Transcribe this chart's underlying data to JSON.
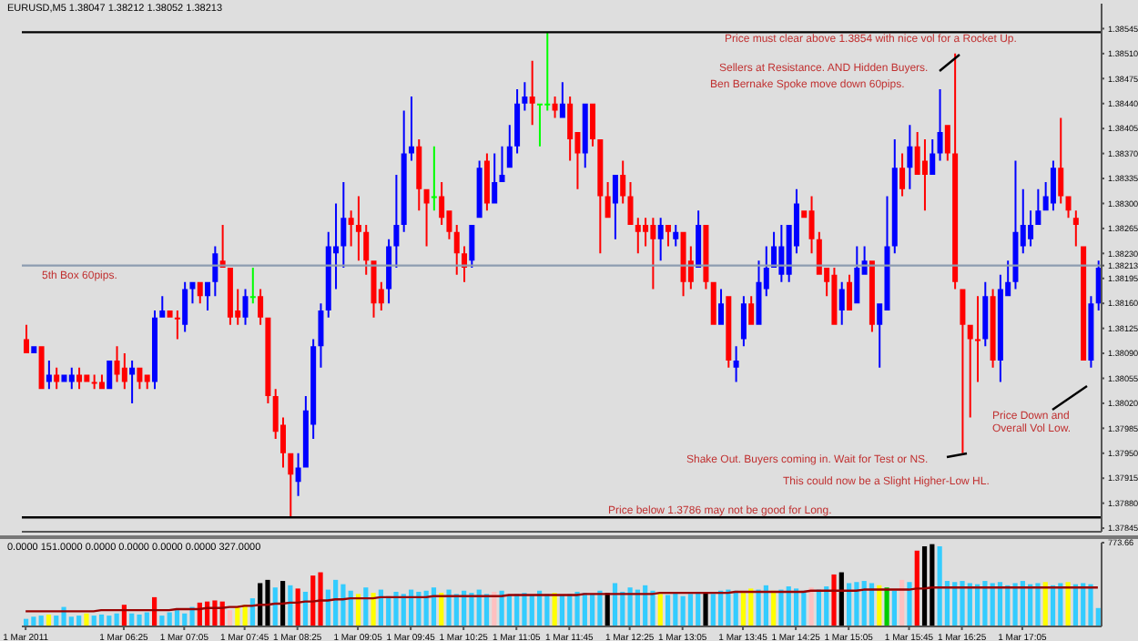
{
  "chart_data": [
    {
      "type": "candlestick",
      "title": "EURUSD,M5 1.38047 1.38212 1.38052 1.38213",
      "categories": [
        null,
        null,
        null,
        null,
        null,
        null,
        null,
        null,
        null,
        null,
        null,
        null,
        null,
        null,
        null,
        null,
        null,
        null,
        null,
        null,
        null,
        null,
        null,
        null,
        null,
        null,
        null,
        null,
        null,
        null,
        null,
        null,
        null,
        null,
        null,
        null,
        null,
        null,
        null,
        null,
        null,
        null,
        null,
        null,
        null,
        null,
        null,
        null,
        null,
        null,
        null,
        null,
        null,
        null,
        null,
        null,
        null,
        null,
        null,
        null,
        null,
        null,
        null,
        null,
        null,
        null,
        null,
        null,
        null,
        null,
        null,
        null,
        null,
        null,
        null,
        null,
        null,
        null,
        null,
        null,
        null,
        null,
        null,
        null,
        null,
        null,
        null,
        null,
        null,
        null,
        null,
        null,
        null,
        null,
        null,
        null,
        null,
        null,
        null,
        null,
        null,
        null,
        null,
        null,
        null,
        null,
        null,
        null,
        null,
        null,
        null,
        null,
        null,
        null,
        null,
        null,
        null,
        null,
        null,
        null,
        null,
        null,
        null,
        null,
        null,
        null,
        null,
        null,
        null,
        null,
        null,
        null,
        null,
        null,
        null,
        null,
        null,
        null,
        null,
        null,
        null,
        null,
        null
      ],
      "ohlc": [
        [
          1.3811,
          1.3813,
          1.3809,
          1.3809
        ],
        [
          1.3809,
          1.381,
          1.3809,
          1.381
        ],
        [
          1.381,
          1.381,
          1.3804,
          1.3804
        ],
        [
          1.3805,
          1.3808,
          1.3804,
          1.3806
        ],
        [
          1.3806,
          1.3807,
          1.3804,
          1.3805
        ],
        [
          1.3805,
          1.3806,
          1.3805,
          1.3806
        ],
        [
          1.3805,
          1.3807,
          1.3804,
          1.3806
        ],
        [
          1.3806,
          1.3807,
          1.3804,
          1.3805
        ],
        [
          1.3806,
          1.3806,
          1.3805,
          1.3805
        ],
        [
          1.3805,
          1.3806,
          1.3804,
          1.3805
        ],
        [
          1.3805,
          1.3806,
          1.3804,
          1.3804
        ],
        [
          1.3804,
          1.3808,
          1.3804,
          1.3808
        ],
        [
          1.3808,
          1.381,
          1.3805,
          1.3806
        ],
        [
          1.3807,
          1.3809,
          1.3804,
          1.3805
        ],
        [
          1.3806,
          1.3808,
          1.3802,
          1.3807
        ],
        [
          1.3807,
          1.3807,
          1.3804,
          1.3805
        ],
        [
          1.3806,
          1.3806,
          1.3804,
          1.3805
        ],
        [
          1.3805,
          1.3815,
          1.3804,
          1.3814
        ],
        [
          1.3814,
          1.3817,
          1.3814,
          1.3815
        ],
        [
          1.3815,
          1.3815,
          1.3814,
          1.3814
        ],
        [
          1.3814,
          1.3815,
          1.3811,
          1.3814
        ],
        [
          1.3813,
          1.3819,
          1.3812,
          1.3818
        ],
        [
          1.3818,
          1.3819,
          1.3816,
          1.3819
        ],
        [
          1.3819,
          1.3819,
          1.3816,
          1.3817
        ],
        [
          1.3817,
          1.3819,
          1.3815,
          1.3819
        ],
        [
          1.3819,
          1.3824,
          1.3817,
          1.3823
        ],
        [
          1.3822,
          1.3827,
          1.3821,
          1.3821
        ],
        [
          1.3821,
          1.3821,
          1.3813,
          1.3814
        ],
        [
          1.3815,
          1.3818,
          1.3813,
          1.3814
        ],
        [
          1.3814,
          1.3818,
          1.3813,
          1.3817
        ],
        [
          1.3817,
          1.3821,
          1.3816,
          1.3817
        ],
        [
          1.3817,
          1.3818,
          1.3813,
          1.3814
        ],
        [
          1.3814,
          1.3814,
          1.3802,
          1.3803
        ],
        [
          1.3803,
          1.3804,
          1.3797,
          1.3798
        ],
        [
          1.3799,
          1.38,
          1.3793,
          1.3795
        ],
        [
          1.3795,
          1.3795,
          1.3786,
          1.3792
        ],
        [
          1.3791,
          1.3795,
          1.3789,
          1.3793
        ],
        [
          1.3793,
          1.3803,
          1.3793,
          1.3801
        ],
        [
          1.3799,
          1.3811,
          1.3797,
          1.381
        ],
        [
          1.381,
          1.3816,
          1.3807,
          1.3815
        ],
        [
          1.3815,
          1.3826,
          1.3814,
          1.3824
        ],
        [
          1.3823,
          1.383,
          1.3818,
          1.3824
        ],
        [
          1.3824,
          1.3833,
          1.3821,
          1.3828
        ],
        [
          1.3828,
          1.3829,
          1.3824,
          1.3827
        ],
        [
          1.3827,
          1.3831,
          1.3822,
          1.3826
        ],
        [
          1.3826,
          1.3827,
          1.382,
          1.3822
        ],
        [
          1.3822,
          1.3822,
          1.3814,
          1.3816
        ],
        [
          1.3818,
          1.3819,
          1.3815,
          1.3816
        ],
        [
          1.3818,
          1.3825,
          1.3816,
          1.3824
        ],
        [
          1.3824,
          1.3834,
          1.3821,
          1.3827
        ],
        [
          1.3827,
          1.3843,
          1.3826,
          1.3837
        ],
        [
          1.3837,
          1.3845,
          1.3836,
          1.3838
        ],
        [
          1.3838,
          1.3839,
          1.3829,
          1.3832
        ],
        [
          1.3832,
          1.3832,
          1.3824,
          1.383
        ],
        [
          1.3831,
          1.3838,
          1.3829,
          1.3831
        ],
        [
          1.3831,
          1.3833,
          1.3827,
          1.3828
        ],
        [
          1.3829,
          1.3829,
          1.3825,
          1.3826
        ],
        [
          1.3826,
          1.3827,
          1.382,
          1.3823
        ],
        [
          1.3823,
          1.3824,
          1.3819,
          1.3821
        ],
        [
          1.3822,
          1.3827,
          1.3821,
          1.3827
        ],
        [
          1.3828,
          1.3836,
          1.3828,
          1.3835
        ],
        [
          1.3836,
          1.3837,
          1.3829,
          1.383
        ],
        [
          1.383,
          1.3837,
          1.383,
          1.3833
        ],
        [
          1.3833,
          1.3838,
          1.3833,
          1.3834
        ],
        [
          1.3835,
          1.3841,
          1.3835,
          1.3838
        ],
        [
          1.3838,
          1.3846,
          1.3837,
          1.3844
        ],
        [
          1.3844,
          1.3847,
          1.3843,
          1.3845
        ],
        [
          1.3845,
          1.385,
          1.3841,
          1.3844
        ],
        [
          1.3844,
          1.3844,
          1.3838,
          1.3844
        ],
        [
          1.3844,
          1.3854,
          1.3843,
          1.3844
        ],
        [
          1.3844,
          1.3845,
          1.3842,
          1.3843
        ],
        [
          1.3842,
          1.3847,
          1.3842,
          1.3844
        ],
        [
          1.3844,
          1.3845,
          1.3836,
          1.3839
        ],
        [
          1.384,
          1.384,
          1.3832,
          1.3837
        ],
        [
          1.3837,
          1.3844,
          1.3835,
          1.3844
        ],
        [
          1.3844,
          1.3844,
          1.3838,
          1.3839
        ],
        [
          1.3839,
          1.3839,
          1.3823,
          1.3831
        ],
        [
          1.3831,
          1.3833,
          1.3828,
          1.3828
        ],
        [
          1.383,
          1.3834,
          1.3825,
          1.3834
        ],
        [
          1.3834,
          1.3836,
          1.383,
          1.3831
        ],
        [
          1.3831,
          1.3833,
          1.3827,
          1.3827
        ],
        [
          1.3827,
          1.3828,
          1.3823,
          1.3826
        ],
        [
          1.3827,
          1.3828,
          1.3824,
          1.3826
        ],
        [
          1.3827,
          1.3828,
          1.3818,
          1.3825
        ],
        [
          1.3825,
          1.3828,
          1.3822,
          1.3827
        ],
        [
          1.3827,
          1.3827,
          1.3824,
          1.3826
        ],
        [
          1.3825,
          1.3827,
          1.3824,
          1.3826
        ],
        [
          1.3826,
          1.3826,
          1.3817,
          1.3819
        ],
        [
          1.3822,
          1.3824,
          1.3818,
          1.3819
        ],
        [
          1.3821,
          1.3829,
          1.3821,
          1.3827
        ],
        [
          1.3827,
          1.3827,
          1.3818,
          1.3819
        ],
        [
          1.3819,
          1.3819,
          1.3813,
          1.3813
        ],
        [
          1.3813,
          1.3818,
          1.3813,
          1.3816
        ],
        [
          1.3817,
          1.3817,
          1.3807,
          1.3808
        ],
        [
          1.3807,
          1.381,
          1.3805,
          1.3808
        ],
        [
          1.3811,
          1.3817,
          1.381,
          1.3816
        ],
        [
          1.3816,
          1.3817,
          1.3813,
          1.3813
        ],
        [
          1.3813,
          1.3822,
          1.3813,
          1.3819
        ],
        [
          1.3818,
          1.3824,
          1.3817,
          1.3821
        ],
        [
          1.3821,
          1.3826,
          1.3821,
          1.3824
        ],
        [
          1.382,
          1.3827,
          1.3819,
          1.3824
        ],
        [
          1.382,
          1.3827,
          1.3819,
          1.3827
        ],
        [
          1.3824,
          1.3832,
          1.3823,
          1.383
        ],
        [
          1.3829,
          1.3829,
          1.3828,
          1.3828
        ],
        [
          1.3829,
          1.3831,
          1.3823,
          1.3825
        ],
        [
          1.3825,
          1.3826,
          1.382,
          1.382
        ],
        [
          1.3821,
          1.3821,
          1.3817,
          1.3819
        ],
        [
          1.382,
          1.3821,
          1.3813,
          1.3813
        ],
        [
          1.3815,
          1.3819,
          1.3813,
          1.3818
        ],
        [
          1.3819,
          1.382,
          1.3815,
          1.3815
        ],
        [
          1.3816,
          1.3824,
          1.3816,
          1.3821
        ],
        [
          1.382,
          1.3824,
          1.382,
          1.3822
        ],
        [
          1.3822,
          1.3822,
          1.3812,
          1.3813
        ],
        [
          1.3813,
          1.3816,
          1.3807,
          1.3816
        ],
        [
          1.3815,
          1.3831,
          1.3815,
          1.3824
        ],
        [
          1.3824,
          1.3839,
          1.3823,
          1.3835
        ],
        [
          1.3835,
          1.3837,
          1.3831,
          1.3832
        ],
        [
          1.3835,
          1.3841,
          1.3832,
          1.3838
        ],
        [
          1.3838,
          1.384,
          1.3834,
          1.3834
        ],
        [
          1.3836,
          1.3839,
          1.3829,
          1.3834
        ],
        [
          1.3834,
          1.3839,
          1.3834,
          1.3837
        ],
        [
          1.3837,
          1.3846,
          1.3836,
          1.384
        ],
        [
          1.3841,
          1.3841,
          1.3836,
          1.3837
        ],
        [
          1.3837,
          1.3851,
          1.3818,
          1.3819
        ],
        [
          1.3818,
          1.3818,
          1.3795,
          1.3813
        ],
        [
          1.3813,
          1.3813,
          1.38,
          1.3811
        ],
        [
          1.3811,
          1.3817,
          1.3805,
          1.3811
        ],
        [
          1.3811,
          1.3819,
          1.381,
          1.3817
        ],
        [
          1.3817,
          1.3818,
          1.3807,
          1.3808
        ],
        [
          1.3808,
          1.382,
          1.3805,
          1.3818
        ],
        [
          1.3817,
          1.3822,
          1.3817,
          1.3819
        ],
        [
          1.3819,
          1.3836,
          1.3818,
          1.3826
        ],
        [
          1.3824,
          1.3832,
          1.3823,
          1.3827
        ],
        [
          1.3825,
          1.3829,
          1.3824,
          1.3827
        ],
        [
          1.3827,
          1.3832,
          1.3827,
          1.3829
        ],
        [
          1.3829,
          1.3833,
          1.3829,
          1.3831
        ],
        [
          1.383,
          1.3836,
          1.3829,
          1.3835
        ],
        [
          1.3835,
          1.3842,
          1.383,
          1.3831
        ],
        [
          1.3831,
          1.3831,
          1.3828,
          1.3829
        ],
        [
          1.3828,
          1.3829,
          1.3824,
          1.3827
        ],
        [
          1.3824,
          1.3824,
          1.3808,
          1.3808
        ],
        [
          1.3808,
          1.3817,
          1.3807,
          1.3816
        ],
        [
          1.3816,
          1.3822,
          1.3815,
          1.3821
        ]
      ],
      "colors": [
        "#ff0000",
        "#0000ff",
        "#ff0000",
        "#0000ff",
        "#ff0000",
        "#0000ff",
        "#0000ff",
        "#ff0000",
        "#ff0000",
        "#ff0000",
        "#ff0000",
        "#0000ff",
        "#ff0000",
        "#ff0000",
        "#0000ff",
        "#ff0000",
        "#ff0000",
        "#0000ff",
        "#0000ff",
        "#ff0000",
        "#ff0000",
        "#0000ff",
        "#0000ff",
        "#ff0000",
        "#0000ff",
        "#0000ff",
        "#ff0000",
        "#ff0000",
        "#ff0000",
        "#0000ff",
        "#00ff00",
        "#ff0000",
        "#ff0000",
        "#ff0000",
        "#ff0000",
        "#ff0000",
        "#0000ff",
        "#0000ff",
        "#0000ff",
        "#0000ff",
        "#0000ff",
        "#0000ff",
        "#0000ff",
        "#ff0000",
        "#ff0000",
        "#ff0000",
        "#ff0000",
        "#ff0000",
        "#0000ff",
        "#0000ff",
        "#0000ff",
        "#0000ff",
        "#ff0000",
        "#ff0000",
        "#00ff00",
        "#ff0000",
        "#ff0000",
        "#ff0000",
        "#ff0000",
        "#0000ff",
        "#0000ff",
        "#ff0000",
        "#0000ff",
        "#0000ff",
        "#0000ff",
        "#0000ff",
        "#0000ff",
        "#ff0000",
        "#00ff00",
        "#00ff00",
        "#ff0000",
        "#0000ff",
        "#ff0000",
        "#ff0000",
        "#0000ff",
        "#ff0000",
        "#ff0000",
        "#ff0000",
        "#0000ff",
        "#ff0000",
        "#ff0000",
        "#ff0000",
        "#ff0000",
        "#ff0000",
        "#0000ff",
        "#ff0000",
        "#0000ff",
        "#ff0000",
        "#ff0000",
        "#0000ff",
        "#ff0000",
        "#ff0000",
        "#0000ff",
        "#ff0000",
        "#0000ff",
        "#0000ff",
        "#ff0000",
        "#0000ff",
        "#0000ff",
        "#0000ff",
        "#0000ff",
        "#0000ff",
        "#0000ff",
        "#ff0000",
        "#ff0000",
        "#ff0000",
        "#ff0000",
        "#ff0000",
        "#0000ff",
        "#ff0000",
        "#0000ff",
        "#0000ff",
        "#ff0000",
        "#0000ff",
        "#0000ff",
        "#0000ff",
        "#ff0000",
        "#0000ff",
        "#ff0000",
        "#ff0000",
        "#0000ff",
        "#0000ff",
        "#ff0000",
        "#ff0000",
        "#ff0000",
        "#ff0000",
        "#ff0000",
        "#0000ff",
        "#ff0000",
        "#0000ff",
        "#0000ff",
        "#0000ff",
        "#0000ff",
        "#0000ff",
        "#0000ff",
        "#0000ff",
        "#0000ff",
        "#ff0000",
        "#ff0000",
        "#ff0000",
        "#ff0000",
        "#0000ff",
        "#0000ff"
      ],
      "ylim": [
        1.3784,
        1.3858
      ],
      "yticks": [
        {
          "value": 1.37845,
          "label": "1.37845"
        },
        {
          "value": 1.3788,
          "label": "1.37880"
        },
        {
          "value": 1.37915,
          "label": "1.37915"
        },
        {
          "value": 1.3795,
          "label": "1.37950"
        },
        {
          "value": 1.37985,
          "label": "1.37985"
        },
        {
          "value": 1.3802,
          "label": "1.38020"
        },
        {
          "value": 1.38055,
          "label": "1.38055"
        },
        {
          "value": 1.3809,
          "label": "1.38090"
        },
        {
          "value": 1.38125,
          "label": "1.38125"
        },
        {
          "value": 1.3816,
          "label": "1.38160"
        },
        {
          "value": 1.38195,
          "label": "1.38195"
        },
        {
          "value": 1.38213,
          "label": "1.38213"
        },
        {
          "value": 1.3823,
          "label": "1.38230"
        },
        {
          "value": 1.38265,
          "label": "1.38265"
        },
        {
          "value": 1.383,
          "label": "1.38300"
        },
        {
          "value": 1.38335,
          "label": "1.38335"
        },
        {
          "value": 1.3837,
          "label": "1.38370"
        },
        {
          "value": 1.38405,
          "label": "1.38405"
        },
        {
          "value": 1.3844,
          "label": "1.38440"
        },
        {
          "value": 1.38475,
          "label": "1.38475"
        },
        {
          "value": 1.3851,
          "label": "1.38510"
        },
        {
          "value": 1.38545,
          "label": "1.38545"
        }
      ],
      "tick_labels": "y",
      "ref_lines": [
        {
          "axis": "y",
          "value": 1.38213,
          "label": "5th Box 60pips.",
          "color": "#8c9cb0"
        },
        {
          "axis": "y",
          "value": 1.3854,
          "color": "#000000"
        },
        {
          "axis": "y",
          "value": 1.3786,
          "color": "#000000"
        }
      ],
      "annotations": [
        "Sellers at Resistance. AND Hidden Buyers.",
        "Ben Bernake Spoke move down 60pips.",
        "Price must clear above 1.3854 with nice vol  for a Rocket Up.",
        "Price Down and Overall Vol Low.",
        "Shake Out. Buyers coming in. Wait for Test or NS.",
        "This could now be a Slight Higher-Low HL.",
        "Price below 1.3786  may not be good for Long."
      ]
    },
    {
      "type": "bar",
      "title": "0.0000 151.0000 0.0000 0.0000 0.0000 0.0000 327.0000",
      "categories": [
        "1 Mar 2011",
        null,
        null,
        null,
        null,
        null,
        null,
        null,
        null,
        null,
        null,
        null,
        null,
        "1 Mar 06:25",
        null,
        null,
        null,
        null,
        null,
        null,
        null,
        "1 Mar 07:05",
        null,
        null,
        null,
        null,
        null,
        null,
        null,
        "1 Mar 07:45",
        null,
        null,
        null,
        null,
        null,
        null,
        "1 Mar 08:25",
        null,
        null,
        null,
        null,
        null,
        null,
        null,
        "1 Mar 09:05",
        null,
        null,
        null,
        null,
        null,
        null,
        "1 Mar 09:45",
        null,
        null,
        null,
        null,
        null,
        null,
        "1 Mar 10:25",
        null,
        null,
        null,
        null,
        null,
        null,
        "1 Mar 11:05",
        null,
        null,
        null,
        null,
        null,
        null,
        "1 Mar 11:45",
        null,
        null,
        null,
        null,
        null,
        null,
        null,
        "1 Mar 12:25",
        null,
        null,
        null,
        null,
        null,
        null,
        "1 Mar 13:05",
        null,
        null,
        null,
        null,
        null,
        null,
        null,
        "1 Mar 13:45",
        null,
        null,
        null,
        null,
        null,
        null,
        "1 Mar 14:25",
        null,
        null,
        null,
        null,
        null,
        null,
        "1 Mar 15:05",
        null,
        null,
        null,
        null,
        null,
        null,
        null,
        "1 Mar 15:45",
        null,
        null,
        null,
        null,
        null,
        null,
        "1 Mar 16:25",
        null,
        null,
        null,
        null,
        null,
        null,
        null,
        "1 Mar 17:05",
        null,
        null,
        null,
        null,
        null,
        null,
        null,
        null,
        null,
        null
      ],
      "series": [
        {
          "type": "bar",
          "values": [
            70,
            90,
            100,
            110,
            100,
            180,
            90,
            100,
            120,
            100,
            110,
            100,
            120,
            200,
            120,
            110,
            130,
            270,
            100,
            130,
            150,
            120,
            180,
            220,
            230,
            240,
            230,
            150,
            180,
            200,
            260,
            400,
            430,
            360,
            420,
            380,
            350,
            320,
            470,
            500,
            340,
            430,
            390,
            330,
            300,
            360,
            310,
            340,
            280,
            320,
            300,
            340,
            320,
            330,
            360,
            310,
            340,
            300,
            330,
            310,
            340,
            300,
            320,
            330,
            290,
            300,
            310,
            290,
            330,
            300,
            310,
            290,
            300,
            320,
            310,
            300,
            330,
            310,
            400,
            320,
            360,
            340,
            380,
            330,
            300,
            290,
            310,
            280,
            300,
            320,
            310,
            300,
            330,
            340,
            330,
            310,
            350,
            340,
            380,
            330,
            340,
            370,
            350,
            330,
            360,
            340,
            370,
            480,
            500,
            400,
            410,
            420,
            400,
            380,
            360,
            330,
            430,
            410,
            700,
            740,
            760,
            740,
            420,
            410,
            420,
            400,
            390,
            420,
            400,
            410,
            380,
            400,
            420,
            390,
            400,
            410,
            380,
            400,
            410,
            390,
            400,
            390,
            170
          ],
          "colors": [
            "#33ccff",
            "#33ccff",
            "#33ccff",
            "#ffff00",
            "#33ccff",
            "#33ccff",
            "#33ccff",
            "#33ccff",
            "#ffff00",
            "#33ccff",
            "#33ccff",
            "#33ccff",
            "#33ccff",
            "#ff0000",
            "#33ccff",
            "#33ccff",
            "#33ccff",
            "#ff0000",
            "#33ccff",
            "#33ccff",
            "#33ccff",
            "#33ccff",
            "#33ccff",
            "#ff0000",
            "#ff0000",
            "#ff0000",
            "#ff0000",
            "#ffc0c0",
            "#ffff00",
            "#ffff00",
            "#33ccff",
            "#000000",
            "#000000",
            "#33ccff",
            "#000000",
            "#33ccff",
            "#ff0000",
            "#33ccff",
            "#ff0000",
            "#ff0000",
            "#33ccff",
            "#33ccff",
            "#33ccff",
            "#33ccff",
            "#ffff00",
            "#33ccff",
            "#ffff00",
            "#33ccff",
            "#33ccff",
            "#33ccff",
            "#33ccff",
            "#33ccff",
            "#33ccff",
            "#33ccff",
            "#33ccff",
            "#ffff00",
            "#33ccff",
            "#33ccff",
            "#33ccff",
            "#33ccff",
            "#33ccff",
            "#33ccff",
            "#ffc0c0",
            "#33ccff",
            "#33ccff",
            "#33ccff",
            "#33ccff",
            "#33ccff",
            "#33ccff",
            "#33ccff",
            "#ffff00",
            "#33ccff",
            "#33ccff",
            "#33ccff",
            "#33ccff",
            "#33ccff",
            "#33ccff",
            "#000000",
            "#33ccff",
            "#33ccff",
            "#33ccff",
            "#33ccff",
            "#33ccff",
            "#33ccff",
            "#ffff00",
            "#33ccff",
            "#33ccff",
            "#33ccff",
            "#33ccff",
            "#33ccff",
            "#000000",
            "#33ccff",
            "#33ccff",
            "#33ccff",
            "#33ccff",
            "#ffff00",
            "#ffff00",
            "#33ccff",
            "#33ccff",
            "#ffff00",
            "#33ccff",
            "#33ccff",
            "#33ccff",
            "#33ccff",
            "#ffc0c0",
            "#33ccff",
            "#33ccff",
            "#ff0000",
            "#000000",
            "#33ccff",
            "#33ccff",
            "#33ccff",
            "#33ccff",
            "#ffff00",
            "#00cc00",
            "#33ccff",
            "#ffc0c0",
            "#33ccff",
            "#ff0000",
            "#000000",
            "#000000",
            "#33ccff",
            "#33ccff",
            "#33ccff",
            "#33ccff",
            "#33ccff",
            "#33ccff",
            "#33ccff",
            "#33ccff",
            "#33ccff",
            "#33ccff",
            "#33ccff",
            "#33ccff",
            "#33ccff",
            "#33ccff",
            "#ffff00",
            "#33ccff",
            "#33ccff",
            "#ffff00",
            "#33ccff",
            "#33ccff",
            "#33ccff",
            "#33ccff"
          ]
        },
        {
          "type": "line",
          "color": "#990000",
          "values": [
            140,
            140,
            140,
            140,
            140,
            140,
            140,
            140,
            140,
            140,
            150,
            150,
            150,
            150,
            150,
            150,
            150,
            150,
            150,
            150,
            160,
            160,
            160,
            160,
            170,
            170,
            170,
            180,
            180,
            190,
            190,
            200,
            200,
            210,
            210,
            220,
            220,
            230,
            230,
            240,
            240,
            250,
            250,
            260,
            260,
            260,
            260,
            270,
            270,
            270,
            270,
            270,
            270,
            270,
            280,
            280,
            280,
            280,
            280,
            280,
            280,
            280,
            280,
            280,
            290,
            290,
            290,
            290,
            290,
            290,
            290,
            290,
            290,
            290,
            300,
            300,
            300,
            300,
            300,
            300,
            300,
            300,
            300,
            300,
            310,
            310,
            310,
            310,
            310,
            310,
            310,
            310,
            310,
            310,
            320,
            320,
            320,
            320,
            320,
            320,
            320,
            320,
            320,
            320,
            330,
            330,
            330,
            330,
            330,
            330,
            330,
            340,
            340,
            340,
            340,
            340,
            340,
            340,
            350,
            350,
            360,
            360,
            360,
            360,
            360,
            360,
            360,
            360,
            360,
            360,
            360,
            360,
            360,
            360,
            360,
            360,
            360,
            360,
            360,
            360,
            360,
            360,
            360
          ]
        }
      ],
      "ylim": [
        0,
        773.66
      ],
      "yticks": [
        773.66
      ]
    }
  ]
}
